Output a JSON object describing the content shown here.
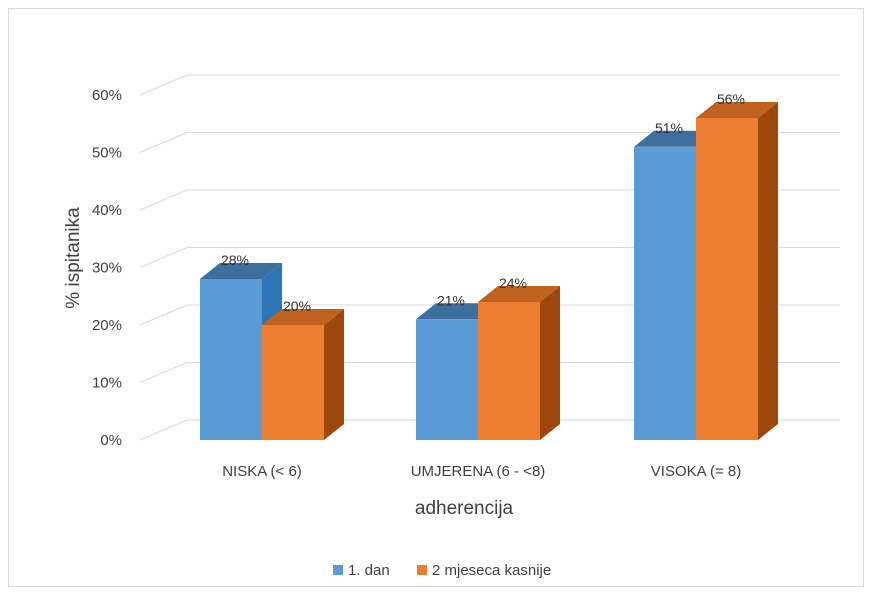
{
  "chart_data": {
    "type": "bar",
    "categories": [
      "NISKA (< 6)",
      "UMJERENA (6 - <8)",
      "VISOKA (= 8)"
    ],
    "series": [
      {
        "name": "1. dan",
        "values": [
          28,
          21,
          51
        ],
        "labels": [
          "28%",
          "21%",
          "51%"
        ],
        "color": "#5b9bd5"
      },
      {
        "name": "2 mjeseca kasnije",
        "values": [
          20,
          24,
          56
        ],
        "labels": [
          "20%",
          "24%",
          "56%"
        ],
        "color": "#ed7d31"
      }
    ],
    "y_ticks": [
      "0%",
      "10%",
      "20%",
      "30%",
      "40%",
      "50%",
      "60%"
    ],
    "ylim": [
      0,
      60
    ],
    "xlabel": "adherencija",
    "ylabel": "% ispitanika",
    "legend_position": "bottom",
    "grid": true,
    "style": "3d"
  }
}
